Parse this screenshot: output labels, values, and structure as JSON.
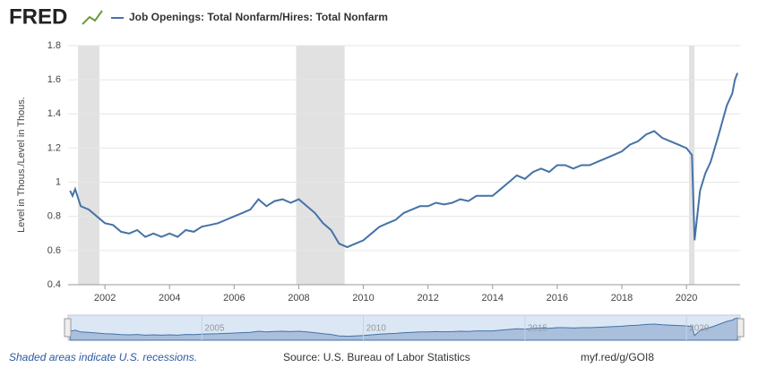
{
  "chart_data": {
    "type": "line",
    "logo": "FRED",
    "title": "Job Openings: Total Nonfarm/Hires: Total Nonfarm",
    "ylabel": "Level in Thous./Level in Thous.",
    "note": "Shaded areas indicate U.S. recessions.",
    "source": "Source: U.S. Bureau of Labor Statistics",
    "link": "myf.red/g/GOI8",
    "xlim": [
      2000.86,
      2021.66
    ],
    "xticks": [
      2002,
      2004,
      2006,
      2008,
      2010,
      2012,
      2014,
      2016,
      2018,
      2020
    ],
    "ylim": [
      0.4,
      1.8
    ],
    "yticks": [
      0.4,
      0.6,
      0.8,
      1.0,
      1.2,
      1.4,
      1.6,
      1.8
    ],
    "grid": true,
    "recessions": [
      [
        2001.17,
        2001.83
      ],
      [
        2007.92,
        2009.42
      ],
      [
        2020.08,
        2020.25
      ]
    ],
    "navigator_ticks": [
      2005,
      2010,
      2015,
      2020
    ],
    "series": [
      {
        "name": "Job Openings: Total Nonfarm/Hires: Total Nonfarm",
        "color": "#4572a7",
        "x": [
          2000.92,
          2001.0,
          2001.08,
          2001.25,
          2001.5,
          2001.75,
          2002.0,
          2002.25,
          2002.5,
          2002.75,
          2003.0,
          2003.25,
          2003.5,
          2003.75,
          2004.0,
          2004.25,
          2004.5,
          2004.75,
          2005.0,
          2005.25,
          2005.5,
          2005.75,
          2006.0,
          2006.25,
          2006.5,
          2006.75,
          2007.0,
          2007.25,
          2007.5,
          2007.75,
          2008.0,
          2008.25,
          2008.5,
          2008.75,
          2009.0,
          2009.25,
          2009.5,
          2009.75,
          2010.0,
          2010.25,
          2010.5,
          2010.75,
          2011.0,
          2011.25,
          2011.5,
          2011.75,
          2012.0,
          2012.25,
          2012.5,
          2012.75,
          2013.0,
          2013.25,
          2013.5,
          2013.75,
          2014.0,
          2014.25,
          2014.5,
          2014.75,
          2015.0,
          2015.25,
          2015.5,
          2015.75,
          2016.0,
          2016.25,
          2016.5,
          2016.75,
          2017.0,
          2017.25,
          2017.5,
          2017.75,
          2018.0,
          2018.25,
          2018.5,
          2018.75,
          2019.0,
          2019.25,
          2019.5,
          2019.75,
          2020.0,
          2020.17,
          2020.25,
          2020.42,
          2020.58,
          2020.75,
          2021.0,
          2021.25,
          2021.42,
          2021.5,
          2021.58
        ],
        "values": [
          0.95,
          0.92,
          0.96,
          0.86,
          0.84,
          0.8,
          0.76,
          0.75,
          0.71,
          0.7,
          0.72,
          0.68,
          0.7,
          0.68,
          0.7,
          0.68,
          0.72,
          0.71,
          0.74,
          0.75,
          0.76,
          0.78,
          0.8,
          0.82,
          0.84,
          0.9,
          0.86,
          0.89,
          0.9,
          0.88,
          0.9,
          0.86,
          0.82,
          0.76,
          0.72,
          0.64,
          0.62,
          0.64,
          0.66,
          0.7,
          0.74,
          0.76,
          0.78,
          0.82,
          0.84,
          0.86,
          0.86,
          0.88,
          0.87,
          0.88,
          0.9,
          0.89,
          0.92,
          0.92,
          0.92,
          0.96,
          1.0,
          1.04,
          1.02,
          1.06,
          1.08,
          1.06,
          1.1,
          1.1,
          1.08,
          1.1,
          1.1,
          1.12,
          1.14,
          1.16,
          1.18,
          1.22,
          1.24,
          1.28,
          1.3,
          1.26,
          1.24,
          1.22,
          1.2,
          1.16,
          0.66,
          0.95,
          1.05,
          1.12,
          1.28,
          1.45,
          1.52,
          1.6,
          1.64
        ]
      }
    ]
  }
}
